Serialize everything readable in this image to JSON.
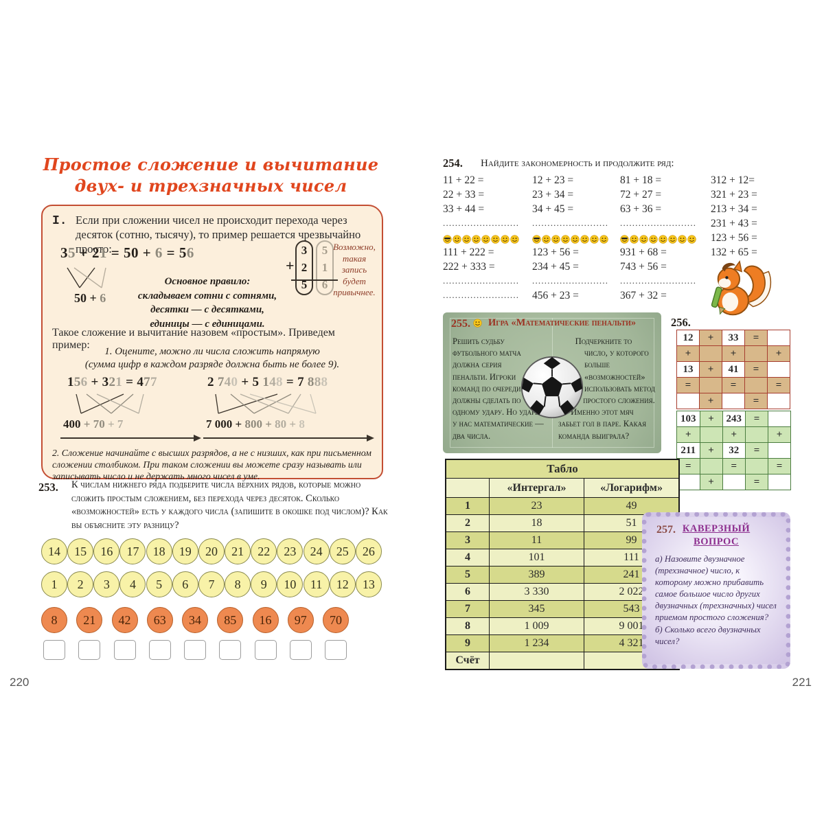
{
  "colors": {
    "title_red": "#e0461e",
    "box_bg": "#fcefdc",
    "box_border": "#c34e33",
    "pitch_green": "#a7bb9e",
    "header_red": "#9c3222",
    "table_dark_row": "#d6da8c",
    "table_light_row": "#eef0c4",
    "grid1_fill": "#d8b88a",
    "grid1_border": "#a63c2e",
    "grid2_fill": "#cde5b5",
    "grid2_border": "#4a7c3f",
    "stamp_purple": "#cfc2e4",
    "heading_purple": "#8d2f8f",
    "circle_yellow": "#f8f2a8",
    "circle_orange": "#ee8950"
  },
  "page_left": {
    "page_number": "220",
    "title1": "Простое сложение и вычитание",
    "title2": "двух- и трехзначных чисел",
    "rule_box": {
      "numeral": "I.",
      "intro": "Если при сложении чисел не происходит перехода через десяток (сотню, тысячу), то пример решается чрезвычайно просто:",
      "formula": [
        [
          "3",
          "d"
        ],
        [
          "5",
          "m"
        ],
        [
          " + ",
          "d"
        ],
        [
          "2",
          "d"
        ],
        [
          "1",
          "m"
        ],
        [
          " = ",
          "d"
        ],
        [
          "50",
          "d"
        ],
        [
          " + ",
          "d"
        ],
        [
          "6",
          "m"
        ],
        [
          " = ",
          "d"
        ],
        [
          "5",
          "d"
        ],
        [
          "6",
          "m"
        ]
      ],
      "formula_below": [
        [
          "50",
          "d"
        ],
        [
          " + ",
          "d"
        ],
        [
          "6",
          "m"
        ]
      ],
      "rule_title": "Основное правило:",
      "rule_lines": [
        "складываем сотни с сотнями,",
        "десятки — с десятками,",
        "единицы — с единицами."
      ],
      "column_sum": {
        "plus": "+",
        "left": [
          "3",
          "2",
          "5"
        ],
        "right": [
          "5",
          "1",
          "6"
        ]
      },
      "note": "Возможно, такая запись будет привычнее.",
      "para2": "Такое сложение и вычитание назовем «простым». Приведем пример:",
      "step1a": "1. Оцените, можно ли числа сложить напрямую",
      "step1b": "(сумма цифр в каждом разряде должна быть не более 9).",
      "ex1": [
        [
          "1",
          "d"
        ],
        [
          "5",
          "m"
        ],
        [
          "6",
          "l"
        ],
        [
          " + ",
          "d"
        ],
        [
          "3",
          "d"
        ],
        [
          "2",
          "m"
        ],
        [
          "1",
          "l"
        ],
        [
          " = ",
          "d"
        ],
        [
          "4",
          "d"
        ],
        [
          "7",
          "m"
        ],
        [
          "7",
          "l"
        ]
      ],
      "ex1_decomp": [
        [
          "400",
          "d"
        ],
        [
          " + ",
          "m"
        ],
        [
          "70",
          "m"
        ],
        [
          " + ",
          "l"
        ],
        [
          "7",
          "l"
        ]
      ],
      "ex2": [
        [
          "2 ",
          "d"
        ],
        [
          "7",
          "m"
        ],
        [
          "4",
          "l"
        ],
        [
          "0",
          "x"
        ],
        [
          " + ",
          "d"
        ],
        [
          "5 ",
          "d"
        ],
        [
          "1",
          "m"
        ],
        [
          "4",
          "l"
        ],
        [
          "8",
          "x"
        ],
        [
          " = ",
          "d"
        ],
        [
          "7 ",
          "d"
        ],
        [
          "8",
          "m"
        ],
        [
          "8",
          "l"
        ],
        [
          "8",
          "x"
        ]
      ],
      "ex2_decomp": [
        [
          "7 000",
          "d"
        ],
        [
          " + ",
          "d"
        ],
        [
          "800",
          "m"
        ],
        [
          " + ",
          "m"
        ],
        [
          "80",
          "l"
        ],
        [
          " + ",
          "l"
        ],
        [
          "8",
          "x"
        ]
      ],
      "step2": "2. Сложение начинайте с высших разрядов, а не с низших, как при письменном сложении столбиком. При таком сложении вы можете сразу называть или записывать число и не держать много чисел в уме."
    },
    "task253": {
      "number": "253.",
      "text": "К числам нижнего ряда подберите числа верхних рядов, которые можно сложить простым сложением, без перехода через десяток. Сколько «возможностей» есть у каждого числа (запишите в окошке под числом)? Как вы объясните эту разницу?",
      "row_top": [
        "14",
        "15",
        "16",
        "17",
        "18",
        "19",
        "20",
        "21",
        "22",
        "23",
        "24",
        "25",
        "26"
      ],
      "row_mid": [
        "1",
        "2",
        "3",
        "4",
        "5",
        "6",
        "7",
        "8",
        "9",
        "10",
        "11",
        "12",
        "13"
      ],
      "row_orange": [
        "8",
        "21",
        "42",
        "63",
        "34",
        "85",
        "16",
        "97",
        "70"
      ]
    }
  },
  "page_right": {
    "page_number": "221",
    "task254": {
      "number": "254.",
      "text": "Найдите закономерность и продолжите ряд:",
      "dots": ".........................",
      "columns": [
        [
          {
            "t": "expr",
            "v": "11 + 22 ="
          },
          {
            "t": "expr",
            "v": "22 + 33 ="
          },
          {
            "t": "expr",
            "v": "33 + 44 ="
          },
          {
            "t": "dots"
          },
          {
            "t": "emoji"
          },
          {
            "t": "expr",
            "v": "111 + 222 ="
          },
          {
            "t": "expr",
            "v": "222 + 333 ="
          },
          {
            "t": "dots"
          },
          {
            "t": "dots"
          }
        ],
        [
          {
            "t": "expr",
            "v": "12 + 23 ="
          },
          {
            "t": "expr",
            "v": "23 + 34 ="
          },
          {
            "t": "expr",
            "v": "34 + 45 ="
          },
          {
            "t": "dots"
          },
          {
            "t": "emoji"
          },
          {
            "t": "expr",
            "v": "123 + 56 ="
          },
          {
            "t": "expr",
            "v": "234 + 45 ="
          },
          {
            "t": "dots"
          },
          {
            "t": "expr",
            "v": "456 + 23 ="
          }
        ],
        [
          {
            "t": "expr",
            "v": "81 + 18 ="
          },
          {
            "t": "expr",
            "v": "72 + 27 ="
          },
          {
            "t": "expr",
            "v": "63 + 36 ="
          },
          {
            "t": "dots"
          },
          {
            "t": "emoji"
          },
          {
            "t": "expr",
            "v": "931 + 68 ="
          },
          {
            "t": "expr",
            "v": "743 + 56 ="
          },
          {
            "t": "dots"
          },
          {
            "t": "expr",
            "v": "367 + 32 ="
          }
        ],
        [
          {
            "t": "expr",
            "v": "312 + 12="
          },
          {
            "t": "expr",
            "v": "321 + 23 ="
          },
          {
            "t": "expr",
            "v": "213 + 34 ="
          },
          {
            "t": "expr",
            "v": "231 + 43 ="
          },
          {
            "t": "expr",
            "v": "123 + 56 ="
          },
          {
            "t": "expr",
            "v": "132 + 65 ="
          }
        ]
      ]
    },
    "task255": {
      "number": "255.",
      "title": "Игра «Математические пенальти»",
      "left": "Решить судьбу футбольного матча должна серия пенальти. Игроки команд по очереди должны сделать по одному удару. Но удары у нас математические — два числа.",
      "right": "Подчеркните то число, у которого больше «возможностей» использовать метод простого сложения. Именно этот мяч забьет гол в паре. Какая команда выиграла?"
    },
    "task256": {
      "number": "256.",
      "fills": [
        [
          0,
          1,
          0,
          1,
          0
        ],
        [
          1,
          1,
          1,
          1,
          1
        ],
        [
          0,
          1,
          0,
          1,
          0
        ],
        [
          1,
          1,
          1,
          1,
          1
        ],
        [
          0,
          1,
          0,
          1,
          0
        ]
      ],
      "grid1": [
        [
          "12",
          "+",
          "33",
          "=",
          ""
        ],
        [
          "+",
          "",
          "+",
          "",
          "+"
        ],
        [
          "13",
          "+",
          "41",
          "=",
          ""
        ],
        [
          "=",
          "",
          "=",
          "",
          "="
        ],
        [
          "",
          "+",
          "",
          "=",
          ""
        ]
      ],
      "grid2": [
        [
          "103",
          "+",
          "243",
          "=",
          ""
        ],
        [
          "+",
          "",
          "+",
          "",
          "+"
        ],
        [
          "211",
          "+",
          "32",
          "=",
          ""
        ],
        [
          "=",
          "",
          "=",
          "",
          "="
        ],
        [
          "",
          "+",
          "",
          "=",
          ""
        ]
      ]
    },
    "scoreboard": {
      "title": "Табло",
      "headers": [
        "",
        "«Интергал»",
        "«Логарифм»"
      ],
      "rows": [
        [
          "1",
          "23",
          "49"
        ],
        [
          "2",
          "18",
          "51"
        ],
        [
          "3",
          "11",
          "99"
        ],
        [
          "4",
          "101",
          "111"
        ],
        [
          "5",
          "389",
          "241"
        ],
        [
          "6",
          "3 330",
          "2 022"
        ],
        [
          "7",
          "345",
          "543"
        ],
        [
          "8",
          "1 009",
          "9 001"
        ],
        [
          "9",
          "1 234",
          "4 321"
        ],
        [
          "Счёт",
          "",
          ""
        ]
      ]
    },
    "task257": {
      "number": "257.",
      "heading1": "КАВЕРЗНЫЙ",
      "heading2": "ВОПРОС",
      "text_a": "а) Назовите двузначное (трехзначное) число, к которому можно прибавить самое большое число других двузначных (трехзначных) чисел приемом простого сложения?",
      "text_b": "б) Сколько всего двузначных чисел?"
    }
  }
}
